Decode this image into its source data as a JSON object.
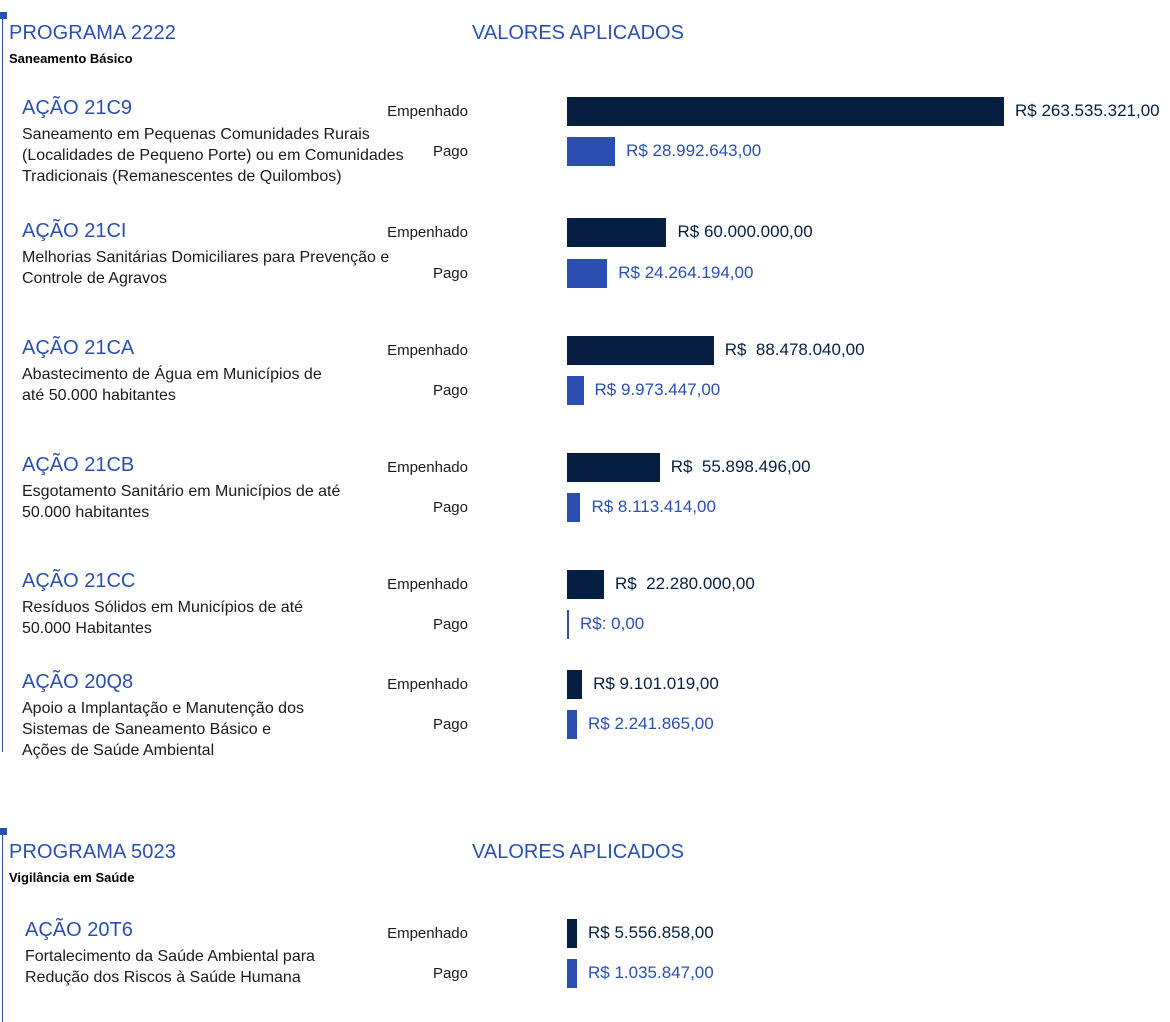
{
  "chart_data": [
    {
      "type": "bar",
      "orientation": "horizontal",
      "program_title": "PROGRAMA 2222",
      "program_subtitle": "Saneamento Básico",
      "values_title": "VALORES APLICADOS",
      "series_labels": {
        "empenhado": "Empenhado",
        "pago": "Pago"
      },
      "actions": [
        {
          "title": "AÇÃO 21C9",
          "description": [
            "Saneamento em Pequenas Comunidades Rurais",
            "(Localidades de Pequeno Porte) ou em Comunidades",
            "Tradicionais (Remanescentes de Quilombos)"
          ],
          "empenhado": 263535321.0,
          "empenhado_label": "R$ 263.535.321,00",
          "pago": 28992643.0,
          "pago_label": "R$ 28.992.643,00"
        },
        {
          "title": "AÇÃO 21CI",
          "description": [
            "Melhorias Sanitárias Domiciliares para Prevenção e",
            "Controle de Agravos"
          ],
          "empenhado": 60000000.0,
          "empenhado_label": "R$ 60.000.000,00",
          "pago": 24264194.0,
          "pago_label": "R$ 24.264.194,00"
        },
        {
          "title": "AÇÃO 21CA",
          "description": [
            "Abastecimento de Água em Municípios de",
            "até 50.000 habitantes"
          ],
          "empenhado": 88478040.0,
          "empenhado_label": "R$  88.478.040,00",
          "pago": 9973447.0,
          "pago_label": "R$ 9.973.447,00"
        },
        {
          "title": "AÇÃO 21CB",
          "description": [
            "Esgotamento Sanitário em Municípios de até",
            "50.000 habitantes"
          ],
          "empenhado": 55898496.0,
          "empenhado_label": "R$  55.898.496,00",
          "pago": 8113414.0,
          "pago_label": "R$ 8.113.414,00"
        },
        {
          "title": "AÇÃO 21CC",
          "description": [
            "Resíduos Sólidos em Municípios de até",
            "50.000 Habitantes"
          ],
          "empenhado": 22280000.0,
          "empenhado_label": "R$  22.280.000,00",
          "pago": 0.0,
          "pago_label": "R$: 0,00"
        },
        {
          "title": "AÇÃO 20Q8",
          "description": [
            "Apoio a Implantação e Manutenção dos",
            "Sistemas de Saneamento Básico e",
            "Ações de Saúde Ambiental"
          ],
          "empenhado": 9101019.0,
          "empenhado_label": "R$ 9.101.019,00",
          "pago": 2241865.0,
          "pago_label": "R$ 2.241.865,00"
        }
      ]
    },
    {
      "type": "bar",
      "orientation": "horizontal",
      "program_title": "PROGRAMA 5023",
      "program_subtitle": "Vigilância em Saúde",
      "values_title": "VALORES APLICADOS",
      "series_labels": {
        "empenhado": "Empenhado",
        "pago": "Pago"
      },
      "actions": [
        {
          "title": "AÇÃO 20T6",
          "description": [
            "Fortalecimento da Saúde Ambiental para",
            "Redução dos Riscos à Saúde Humana"
          ],
          "empenhado": 5556858.0,
          "empenhado_label": "R$ 5.556.858,00",
          "pago": 1035847.0,
          "pago_label": "R$ 1.035.847,00"
        }
      ]
    }
  ],
  "colors": {
    "accent": "#2a4fb0",
    "empenhado_bar": "#061f41",
    "pago_bar": "#2a4fb0"
  }
}
